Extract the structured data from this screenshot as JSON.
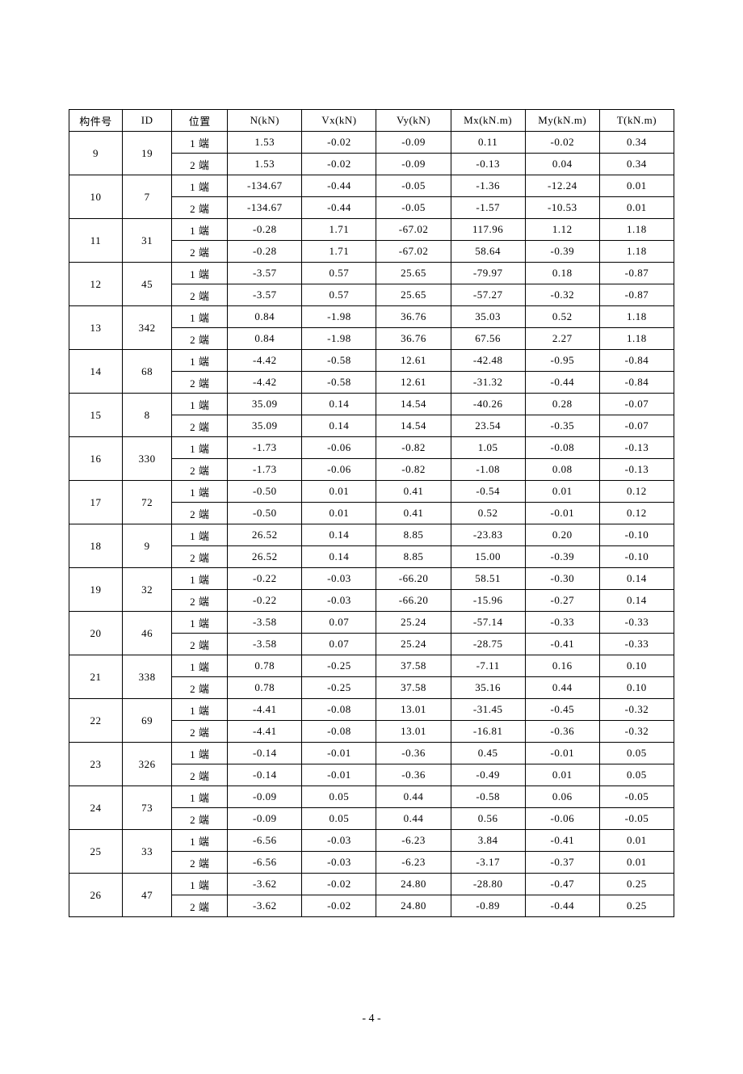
{
  "table": {
    "headers": [
      "构件号",
      "ID",
      "位置",
      "N(kN)",
      "Vx(kN)",
      "Vy(kN)",
      "Mx(kN.m)",
      "My(kN.m)",
      "T(kN.m)"
    ],
    "position_labels": {
      "end1": "1 端",
      "end2": "2 端"
    },
    "rows": [
      {
        "member": "9",
        "id": "19",
        "vals": [
          [
            "1.53",
            "-0.02",
            "-0.09",
            "0.11",
            "-0.02",
            "0.34"
          ],
          [
            "1.53",
            "-0.02",
            "-0.09",
            "-0.13",
            "0.04",
            "0.34"
          ]
        ]
      },
      {
        "member": "10",
        "id": "7",
        "vals": [
          [
            "-134.67",
            "-0.44",
            "-0.05",
            "-1.36",
            "-12.24",
            "0.01"
          ],
          [
            "-134.67",
            "-0.44",
            "-0.05",
            "-1.57",
            "-10.53",
            "0.01"
          ]
        ]
      },
      {
        "member": "11",
        "id": "31",
        "vals": [
          [
            "-0.28",
            "1.71",
            "-67.02",
            "117.96",
            "1.12",
            "1.18"
          ],
          [
            "-0.28",
            "1.71",
            "-67.02",
            "58.64",
            "-0.39",
            "1.18"
          ]
        ]
      },
      {
        "member": "12",
        "id": "45",
        "vals": [
          [
            "-3.57",
            "0.57",
            "25.65",
            "-79.97",
            "0.18",
            "-0.87"
          ],
          [
            "-3.57",
            "0.57",
            "25.65",
            "-57.27",
            "-0.32",
            "-0.87"
          ]
        ]
      },
      {
        "member": "13",
        "id": "342",
        "vals": [
          [
            "0.84",
            "-1.98",
            "36.76",
            "35.03",
            "0.52",
            "1.18"
          ],
          [
            "0.84",
            "-1.98",
            "36.76",
            "67.56",
            "2.27",
            "1.18"
          ]
        ]
      },
      {
        "member": "14",
        "id": "68",
        "vals": [
          [
            "-4.42",
            "-0.58",
            "12.61",
            "-42.48",
            "-0.95",
            "-0.84"
          ],
          [
            "-4.42",
            "-0.58",
            "12.61",
            "-31.32",
            "-0.44",
            "-0.84"
          ]
        ]
      },
      {
        "member": "15",
        "id": "8",
        "vals": [
          [
            "35.09",
            "0.14",
            "14.54",
            "-40.26",
            "0.28",
            "-0.07"
          ],
          [
            "35.09",
            "0.14",
            "14.54",
            "23.54",
            "-0.35",
            "-0.07"
          ]
        ]
      },
      {
        "member": "16",
        "id": "330",
        "vals": [
          [
            "-1.73",
            "-0.06",
            "-0.82",
            "1.05",
            "-0.08",
            "-0.13"
          ],
          [
            "-1.73",
            "-0.06",
            "-0.82",
            "-1.08",
            "0.08",
            "-0.13"
          ]
        ]
      },
      {
        "member": "17",
        "id": "72",
        "vals": [
          [
            "-0.50",
            "0.01",
            "0.41",
            "-0.54",
            "0.01",
            "0.12"
          ],
          [
            "-0.50",
            "0.01",
            "0.41",
            "0.52",
            "-0.01",
            "0.12"
          ]
        ]
      },
      {
        "member": "18",
        "id": "9",
        "vals": [
          [
            "26.52",
            "0.14",
            "8.85",
            "-23.83",
            "0.20",
            "-0.10"
          ],
          [
            "26.52",
            "0.14",
            "8.85",
            "15.00",
            "-0.39",
            "-0.10"
          ]
        ]
      },
      {
        "member": "19",
        "id": "32",
        "vals": [
          [
            "-0.22",
            "-0.03",
            "-66.20",
            "58.51",
            "-0.30",
            "0.14"
          ],
          [
            "-0.22",
            "-0.03",
            "-66.20",
            "-15.96",
            "-0.27",
            "0.14"
          ]
        ]
      },
      {
        "member": "20",
        "id": "46",
        "vals": [
          [
            "-3.58",
            "0.07",
            "25.24",
            "-57.14",
            "-0.33",
            "-0.33"
          ],
          [
            "-3.58",
            "0.07",
            "25.24",
            "-28.75",
            "-0.41",
            "-0.33"
          ]
        ]
      },
      {
        "member": "21",
        "id": "338",
        "vals": [
          [
            "0.78",
            "-0.25",
            "37.58",
            "-7.11",
            "0.16",
            "0.10"
          ],
          [
            "0.78",
            "-0.25",
            "37.58",
            "35.16",
            "0.44",
            "0.10"
          ]
        ]
      },
      {
        "member": "22",
        "id": "69",
        "vals": [
          [
            "-4.41",
            "-0.08",
            "13.01",
            "-31.45",
            "-0.45",
            "-0.32"
          ],
          [
            "-4.41",
            "-0.08",
            "13.01",
            "-16.81",
            "-0.36",
            "-0.32"
          ]
        ]
      },
      {
        "member": "23",
        "id": "326",
        "vals": [
          [
            "-0.14",
            "-0.01",
            "-0.36",
            "0.45",
            "-0.01",
            "0.05"
          ],
          [
            "-0.14",
            "-0.01",
            "-0.36",
            "-0.49",
            "0.01",
            "0.05"
          ]
        ]
      },
      {
        "member": "24",
        "id": "73",
        "vals": [
          [
            "-0.09",
            "0.05",
            "0.44",
            "-0.58",
            "0.06",
            "-0.05"
          ],
          [
            "-0.09",
            "0.05",
            "0.44",
            "0.56",
            "-0.06",
            "-0.05"
          ]
        ]
      },
      {
        "member": "25",
        "id": "33",
        "vals": [
          [
            "-6.56",
            "-0.03",
            "-6.23",
            "3.84",
            "-0.41",
            "0.01"
          ],
          [
            "-6.56",
            "-0.03",
            "-6.23",
            "-3.17",
            "-0.37",
            "0.01"
          ]
        ]
      },
      {
        "member": "26",
        "id": "47",
        "vals": [
          [
            "-3.62",
            "-0.02",
            "24.80",
            "-28.80",
            "-0.47",
            "0.25"
          ],
          [
            "-3.62",
            "-0.02",
            "24.80",
            "-0.89",
            "-0.44",
            "0.25"
          ]
        ]
      }
    ]
  },
  "page_number": "- 4 -"
}
